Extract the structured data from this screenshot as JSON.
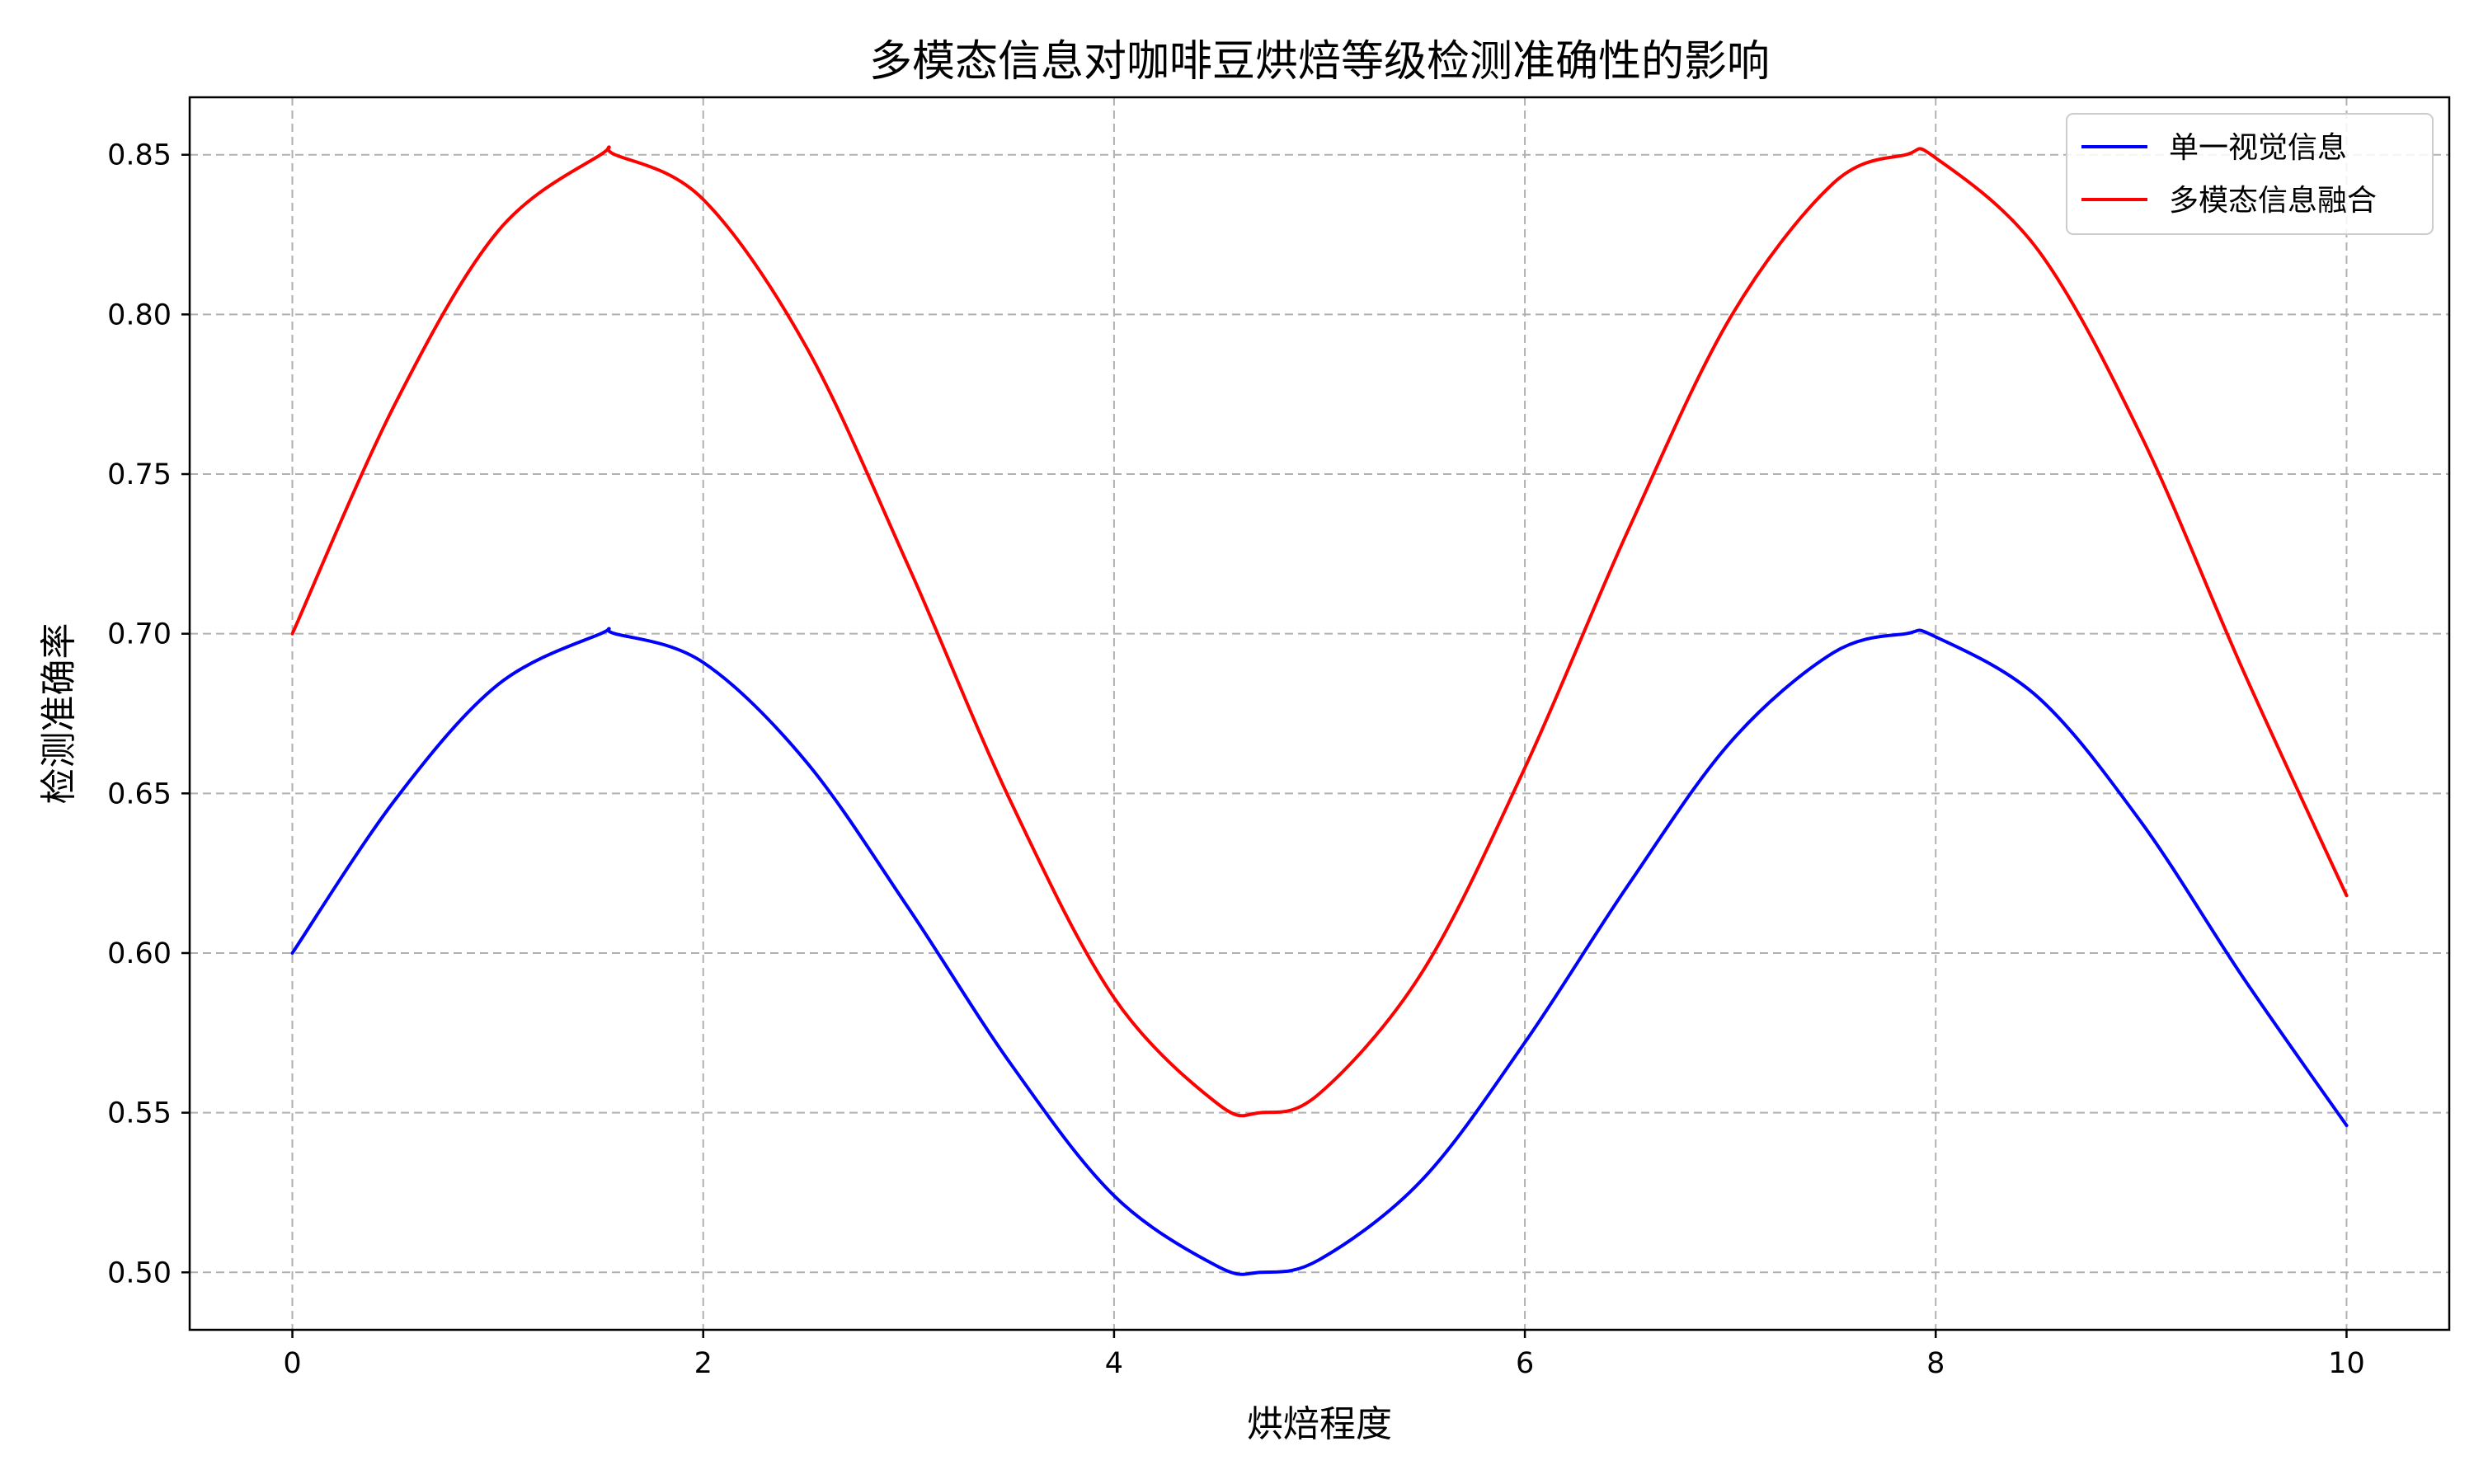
{
  "chart_data": {
    "type": "line",
    "title": "多模态信息对咖啡豆烘焙等级检测准确性的影响",
    "xlabel": "烘焙程度",
    "ylabel": "检测准确率",
    "xlim": [
      -0.5,
      10.5
    ],
    "ylim": [
      0.482,
      0.868
    ],
    "xticks": [
      0,
      2,
      4,
      6,
      8,
      10
    ],
    "yticks": [
      0.5,
      0.55,
      0.6,
      0.65,
      0.7,
      0.75,
      0.8,
      0.85
    ],
    "grid": true,
    "legend_position": "top-right",
    "x": [
      0,
      0.5,
      1,
      1.5,
      1.571,
      2,
      2.5,
      3,
      3.5,
      4,
      4.5,
      4.712,
      5,
      5.5,
      6,
      6.5,
      7,
      7.5,
      7.854,
      8,
      8.5,
      9,
      9.5,
      10
    ],
    "series": [
      {
        "name": "单一视觉信息",
        "color": "#0000ff",
        "values": [
          0.6,
          0.648,
          0.684,
          0.7,
          0.7,
          0.691,
          0.66,
          0.614,
          0.565,
          0.524,
          0.502,
          0.5,
          0.504,
          0.529,
          0.572,
          0.621,
          0.666,
          0.694,
          0.7,
          0.699,
          0.68,
          0.641,
          0.592,
          0.546
        ]
      },
      {
        "name": "多模态信息融合",
        "color": "#ff0000",
        "values": [
          0.7,
          0.772,
          0.826,
          0.85,
          0.85,
          0.836,
          0.79,
          0.721,
          0.647,
          0.586,
          0.553,
          0.55,
          0.556,
          0.594,
          0.658,
          0.732,
          0.799,
          0.841,
          0.85,
          0.849,
          0.82,
          0.762,
          0.688,
          0.618
        ]
      }
    ]
  }
}
